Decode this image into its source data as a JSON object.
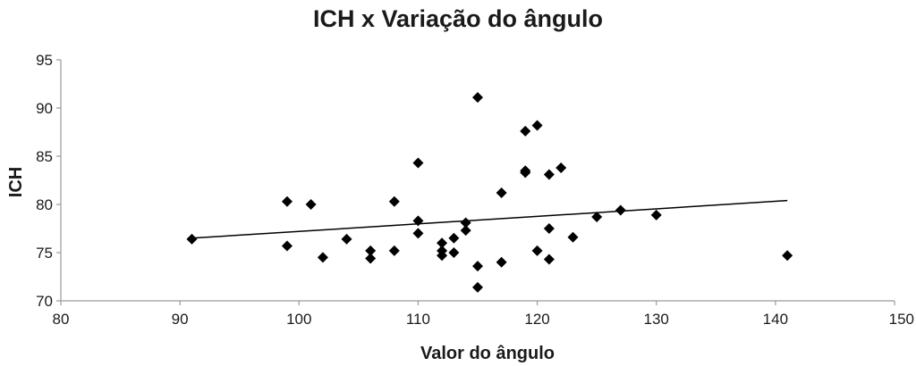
{
  "chart_data": {
    "type": "scatter",
    "title": "ICH x Variação do ângulo",
    "xlabel": "Valor do ângulo",
    "ylabel": "ICH",
    "xlim": [
      80,
      150
    ],
    "ylim": [
      70,
      95
    ],
    "xticks": [
      "80",
      "90",
      "100",
      "110",
      "120",
      "130",
      "140",
      "150"
    ],
    "yticks": [
      "70",
      "75",
      "80",
      "85",
      "90",
      "95"
    ],
    "grid": false,
    "legend": "none",
    "marker": "diamond",
    "marker_color": "#000000",
    "trendline": {
      "type": "linear",
      "x": [
        91,
        141
      ],
      "y": [
        76.5,
        80.4
      ]
    },
    "points": [
      {
        "x": 91,
        "y": 76.4
      },
      {
        "x": 99,
        "y": 80.3
      },
      {
        "x": 99,
        "y": 75.7
      },
      {
        "x": 101,
        "y": 80.0
      },
      {
        "x": 102,
        "y": 74.5
      },
      {
        "x": 104,
        "y": 76.4
      },
      {
        "x": 106,
        "y": 75.2
      },
      {
        "x": 106,
        "y": 74.4
      },
      {
        "x": 108,
        "y": 80.3
      },
      {
        "x": 108,
        "y": 75.2
      },
      {
        "x": 110,
        "y": 84.3
      },
      {
        "x": 110,
        "y": 78.3
      },
      {
        "x": 110,
        "y": 77.0
      },
      {
        "x": 112,
        "y": 76.0
      },
      {
        "x": 112,
        "y": 75.2
      },
      {
        "x": 112,
        "y": 74.7
      },
      {
        "x": 113,
        "y": 76.5
      },
      {
        "x": 113,
        "y": 75.0
      },
      {
        "x": 114,
        "y": 78.1
      },
      {
        "x": 114,
        "y": 77.3
      },
      {
        "x": 115,
        "y": 91.1
      },
      {
        "x": 115,
        "y": 73.6
      },
      {
        "x": 115,
        "y": 71.4
      },
      {
        "x": 117,
        "y": 81.2
      },
      {
        "x": 117,
        "y": 74.0
      },
      {
        "x": 119,
        "y": 87.6
      },
      {
        "x": 119,
        "y": 83.5
      },
      {
        "x": 119,
        "y": 83.3
      },
      {
        "x": 120,
        "y": 88.2
      },
      {
        "x": 120,
        "y": 75.2
      },
      {
        "x": 121,
        "y": 83.1
      },
      {
        "x": 121,
        "y": 77.5
      },
      {
        "x": 121,
        "y": 74.3
      },
      {
        "x": 122,
        "y": 83.8
      },
      {
        "x": 123,
        "y": 76.6
      },
      {
        "x": 125,
        "y": 78.7
      },
      {
        "x": 127,
        "y": 79.4
      },
      {
        "x": 130,
        "y": 78.9
      },
      {
        "x": 141,
        "y": 74.7
      }
    ]
  }
}
